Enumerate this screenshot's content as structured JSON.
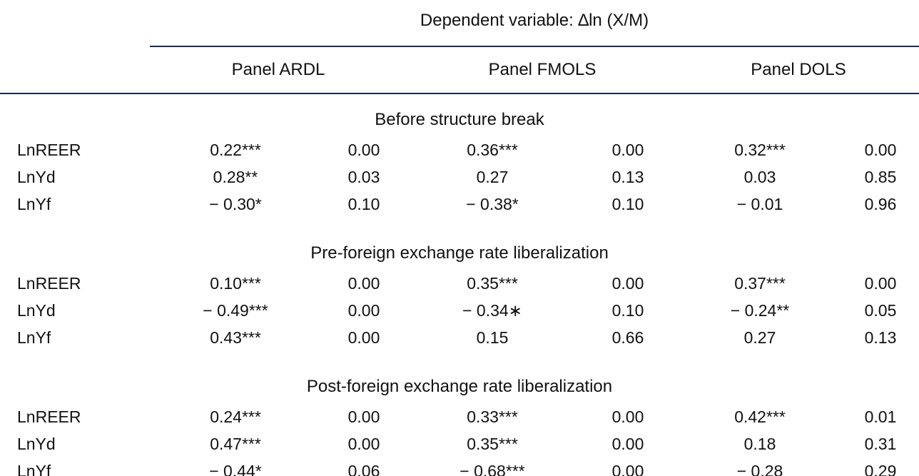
{
  "table": {
    "header": {
      "dependent_variable": "Dependent variable: ∆ln (X/M)",
      "column_groups": [
        "Panel ARDL",
        "Panel FMOLS",
        "Panel DOLS"
      ]
    },
    "sections": [
      {
        "title": "Before structure break",
        "rows": [
          {
            "label": "LnREER",
            "values": [
              "0.22***",
              "0.00",
              "0.36***",
              "0.00",
              "0.32***",
              "0.00"
            ]
          },
          {
            "label": "LnYd",
            "values": [
              "0.28**",
              "0.03",
              "0.27",
              "0.13",
              "0.03",
              "0.85"
            ]
          },
          {
            "label": "LnYf",
            "values": [
              "− 0.30*",
              "0.10",
              "− 0.38*",
              "0.10",
              "− 0.01",
              "0.96"
            ]
          }
        ]
      },
      {
        "title": "Pre-foreign exchange rate liberalization",
        "rows": [
          {
            "label": "LnREER",
            "values": [
              "0.10***",
              "0.00",
              "0.35***",
              "0.00",
              "0.37***",
              "0.00"
            ]
          },
          {
            "label": "LnYd",
            "values": [
              "− 0.49***",
              "0.00",
              "− 0.34∗",
              "0.10",
              "− 0.24**",
              "0.05"
            ]
          },
          {
            "label": "LnYf",
            "values": [
              "0.43***",
              "0.00",
              "0.15",
              "0.66",
              "0.27",
              "0.13"
            ]
          }
        ]
      },
      {
        "title": "Post-foreign exchange rate liberalization",
        "rows": [
          {
            "label": "LnREER",
            "values": [
              "0.24***",
              "0.00",
              "0.33***",
              "0.00",
              "0.42***",
              "0.01"
            ]
          },
          {
            "label": "LnYd",
            "values": [
              "0.47***",
              "0.00",
              "0.35***",
              "0.00",
              "0.18",
              "0.31"
            ]
          },
          {
            "label": "LnYf",
            "values": [
              "− 0.44*",
              "0.06",
              "− 0.68***",
              "0.00",
              "− 0.28",
              "0.29"
            ]
          }
        ]
      }
    ]
  },
  "colors": {
    "rule": "#1c2b53",
    "text": "#111111",
    "background": "#ffffff"
  }
}
